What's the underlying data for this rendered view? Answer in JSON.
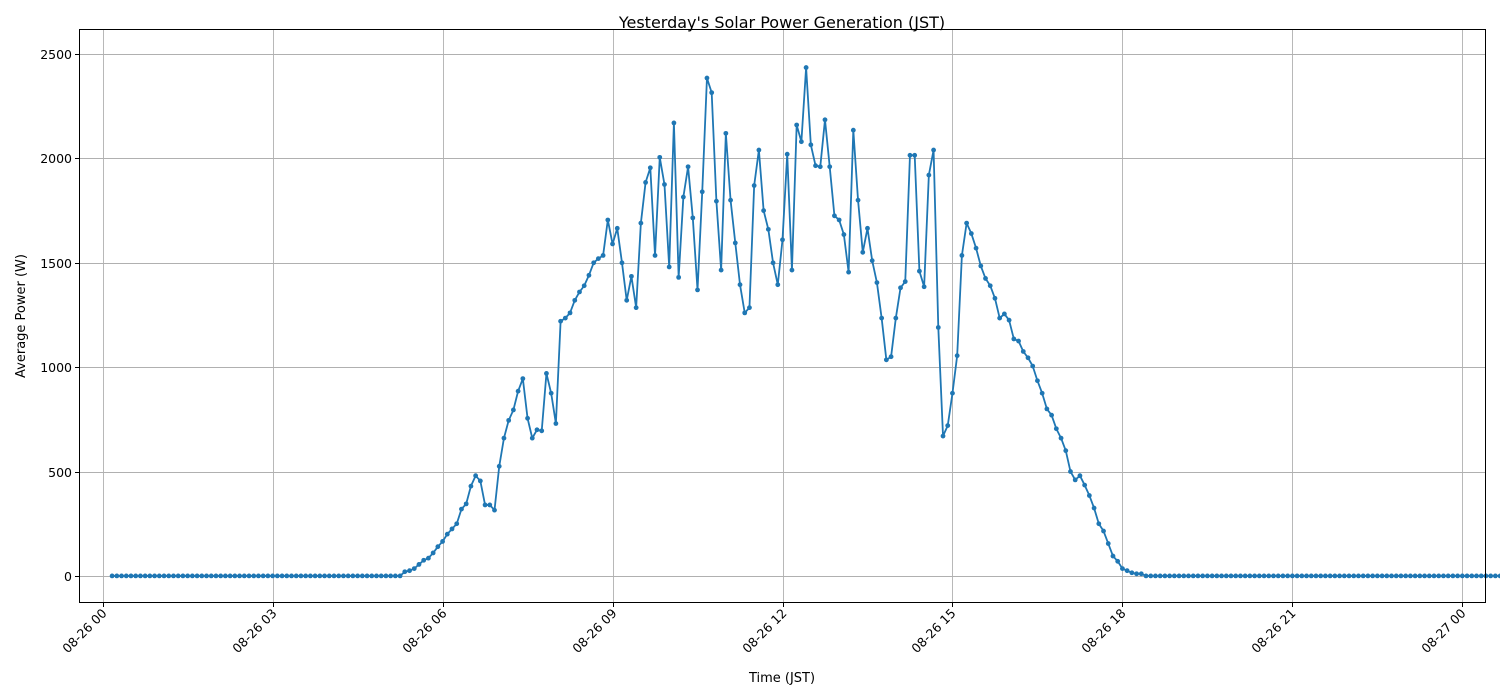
{
  "chart_data": {
    "type": "line",
    "title": "Yesterday's Solar Power Generation (JST)",
    "xlabel": "Time (JST)",
    "ylabel": "Average Power (W)",
    "x_start": "08-26 00:10",
    "x_interval_minutes": 5,
    "xlim": [
      "08-25 23:36",
      "08-27 00:24"
    ],
    "ylim": [
      -125,
      2615
    ],
    "xticks": [
      "08-26 00",
      "08-26 03",
      "08-26 06",
      "08-26 09",
      "08-26 12",
      "08-26 15",
      "08-26 18",
      "08-26 21",
      "08-27 00"
    ],
    "yticks": [
      0,
      500,
      1000,
      1500,
      2000,
      2500
    ],
    "grid": true,
    "series": [
      {
        "color": "#1f77b4",
        "values": [
          0,
          0,
          0,
          0,
          0,
          0,
          0,
          0,
          0,
          0,
          0,
          0,
          0,
          0,
          0,
          0,
          0,
          0,
          0,
          0,
          0,
          0,
          0,
          0,
          0,
          0,
          0,
          0,
          0,
          0,
          0,
          0,
          0,
          0,
          0,
          0,
          0,
          0,
          0,
          0,
          0,
          0,
          0,
          0,
          0,
          0,
          0,
          0,
          0,
          0,
          0,
          0,
          0,
          0,
          0,
          0,
          0,
          0,
          0,
          0,
          0,
          0,
          20,
          25,
          35,
          55,
          75,
          85,
          110,
          140,
          165,
          200,
          225,
          250,
          320,
          345,
          430,
          480,
          455,
          340,
          340,
          315,
          525,
          660,
          745,
          795,
          885,
          945,
          755,
          660,
          700,
          695,
          970,
          875,
          730,
          1220,
          1235,
          1260,
          1320,
          1360,
          1390,
          1440,
          1500,
          1520,
          1535,
          1705,
          1590,
          1665,
          1500,
          1320,
          1435,
          1285,
          1690,
          1885,
          1955,
          1535,
          2005,
          1875,
          1480,
          2170,
          1430,
          1815,
          1960,
          1715,
          1370,
          1840,
          2385,
          2315,
          1795,
          1465,
          2120,
          1800,
          1595,
          1395,
          1260,
          1285,
          1870,
          2040,
          1750,
          1660,
          1500,
          1395,
          1610,
          2020,
          1465,
          2160,
          2080,
          2435,
          2065,
          1965,
          1960,
          2185,
          1960,
          1725,
          1705,
          1635,
          1455,
          2135,
          1800,
          1550,
          1665,
          1510,
          1405,
          1235,
          1035,
          1050,
          1235,
          1380,
          1410,
          2015,
          2015,
          1460,
          1385,
          1920,
          2040,
          1190,
          670,
          720,
          875,
          1055,
          1535,
          1690,
          1640,
          1570,
          1485,
          1425,
          1390,
          1330,
          1235,
          1255,
          1225,
          1135,
          1125,
          1075,
          1045,
          1005,
          935,
          875,
          800,
          770,
          705,
          660,
          600,
          500,
          460,
          480,
          435,
          385,
          325,
          250,
          215,
          155,
          95,
          70,
          35,
          25,
          15,
          10,
          10,
          0,
          0,
          0,
          0,
          0,
          0,
          0,
          0,
          0,
          0,
          0,
          0,
          0,
          0,
          0,
          0,
          0,
          0,
          0,
          0,
          0,
          0,
          0,
          0,
          0,
          0,
          0,
          0,
          0,
          0,
          0,
          0,
          0,
          0,
          0,
          0,
          0,
          0,
          0,
          0,
          0,
          0,
          0,
          0,
          0,
          0,
          0,
          0,
          0,
          0,
          0,
          0,
          0,
          0,
          0,
          0,
          0,
          0,
          0,
          0,
          0,
          0,
          0,
          0,
          0,
          0,
          0,
          0,
          0,
          0,
          0,
          0,
          0,
          0,
          0,
          0,
          0,
          0,
          0
        ]
      }
    ]
  }
}
